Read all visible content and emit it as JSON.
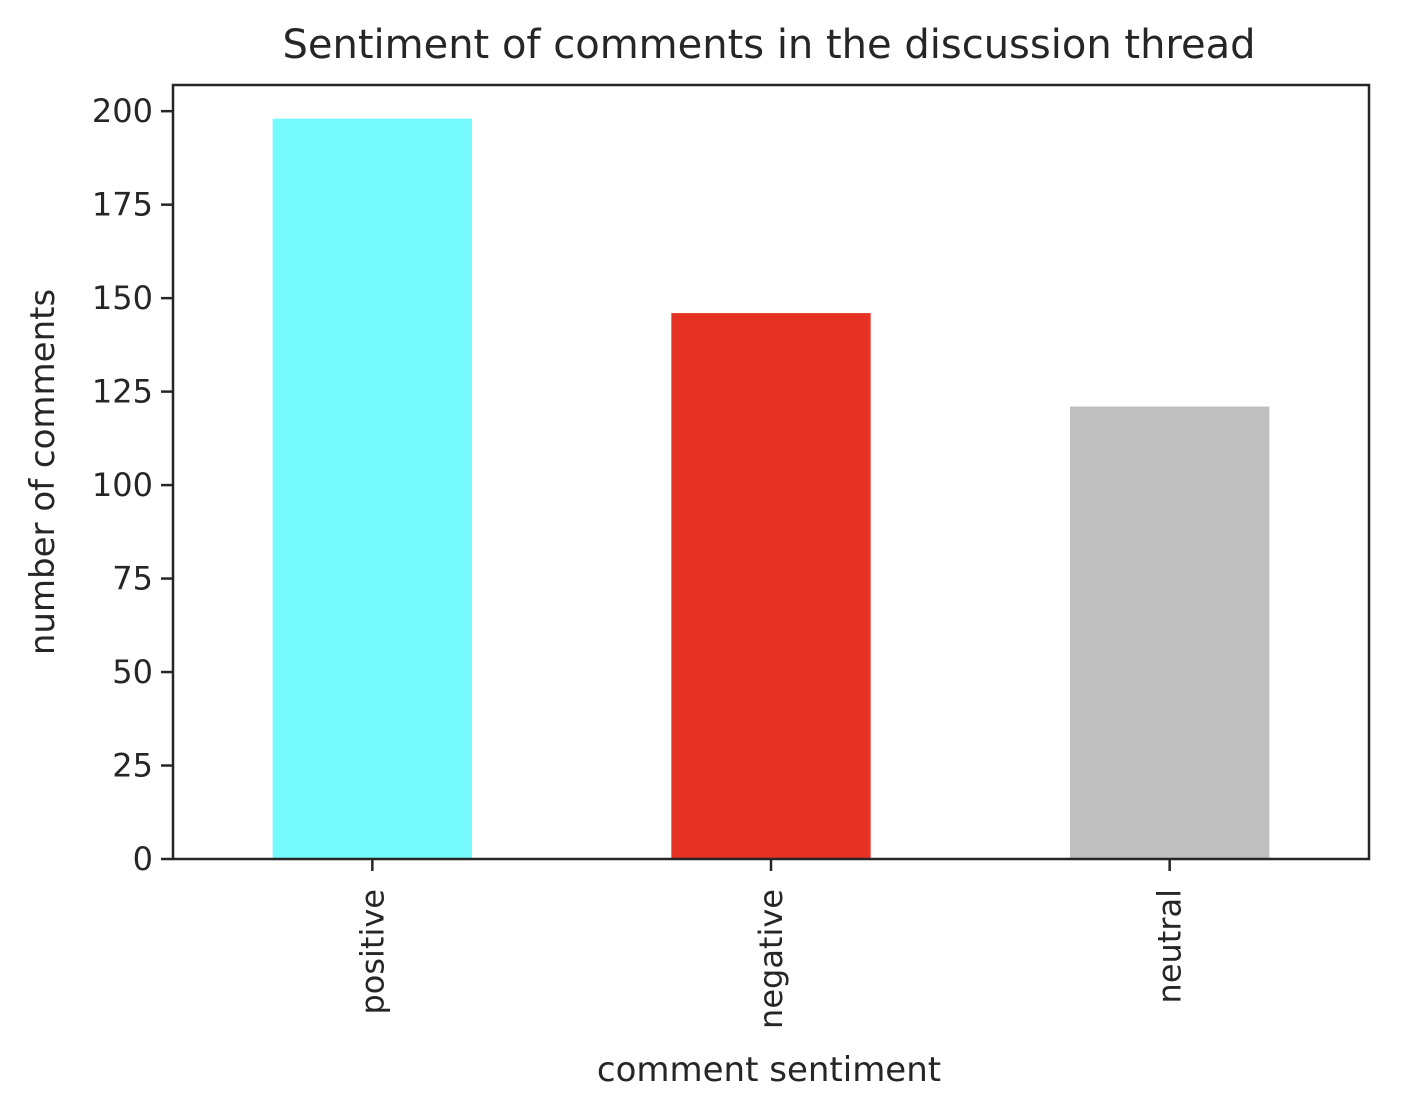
{
  "chart_data": {
    "type": "bar",
    "title": "Sentiment of comments in the discussion thread",
    "xlabel": "comment sentiment",
    "ylabel": "number of comments",
    "categories": [
      "positive",
      "negative",
      "neutral"
    ],
    "values": [
      198,
      146,
      121
    ],
    "colors": [
      "#75fbfd",
      "#e63223",
      "#bfbfbf"
    ],
    "ylim": [
      0,
      207
    ],
    "yticks": [
      0,
      25,
      50,
      75,
      100,
      125,
      150,
      175,
      200
    ],
    "ytick_labels": [
      "0",
      "25",
      "50",
      "75",
      "100",
      "125",
      "150",
      "175",
      "200"
    ],
    "grid": false,
    "legend": "none"
  }
}
